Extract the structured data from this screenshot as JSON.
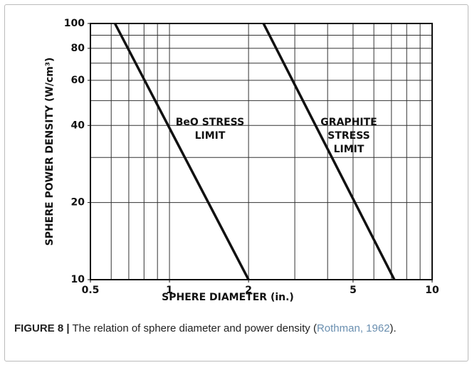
{
  "chart_data": {
    "type": "line",
    "xlabel": "SPHERE DIAMETER (in.)",
    "ylabel": "SPHERE POWER DENSITY (W/cm³)",
    "xscale": "log",
    "yscale": "log",
    "xlim": [
      0.5,
      10
    ],
    "ylim": [
      10,
      100
    ],
    "xticks": [
      0.5,
      1,
      2,
      5,
      10
    ],
    "yticks": [
      10,
      20,
      40,
      60,
      80,
      100
    ],
    "xgrid": [
      0.6,
      0.7,
      0.8,
      0.9,
      1,
      2,
      3,
      4,
      5,
      6,
      7,
      8,
      9
    ],
    "ygrid": [
      20,
      30,
      40,
      50,
      60,
      70,
      80,
      90
    ],
    "grid": true,
    "series": [
      {
        "color": "#111111",
        "x": [
          0.62,
          2
        ],
        "values": [
          100,
          10
        ]
      },
      {
        "color": "#111111",
        "x": [
          2.28,
          7.18
        ],
        "values": [
          100,
          10
        ]
      }
    ],
    "annotations": [
      {
        "lines": [
          "BeO STRESS",
          "LIMIT"
        ]
      },
      {
        "lines": [
          "GRAPHITE",
          "STRESS",
          "LIMIT"
        ]
      }
    ]
  },
  "caption": {
    "label": "FIGURE 8 |",
    "text": " The relation of sphere diameter and power density (",
    "cite": "Rothman, 1962",
    "tail": ")."
  }
}
